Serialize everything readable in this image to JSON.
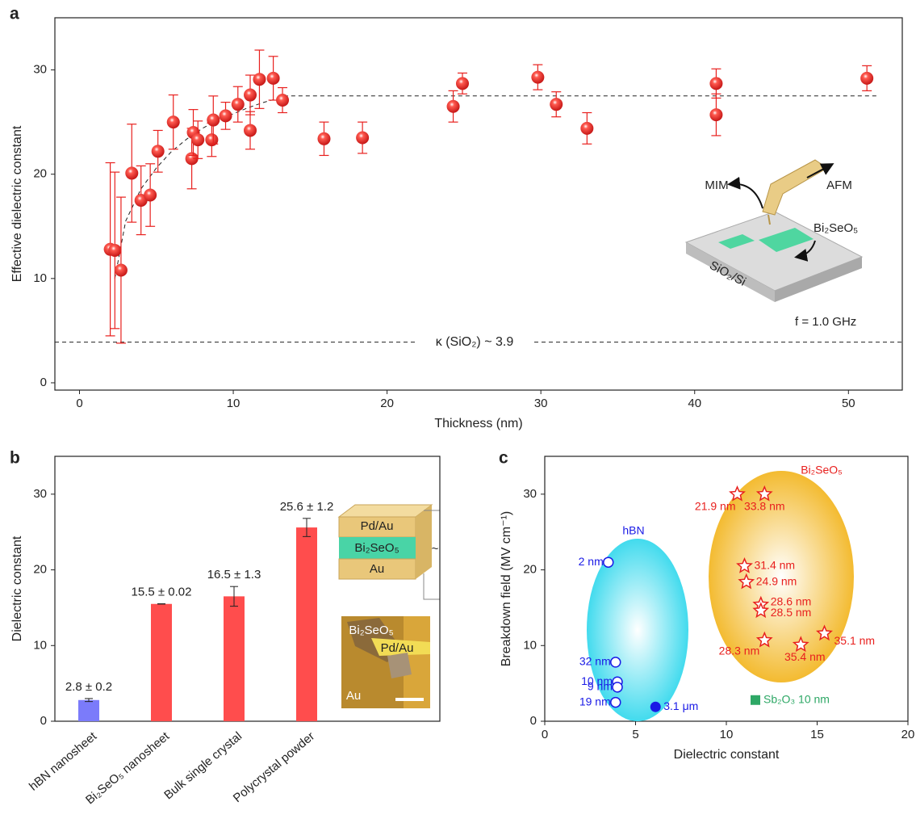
{
  "chart_data": [
    {
      "type": "scatter",
      "panel_label": "a",
      "x_label": "Thickness (nm)",
      "y_label": "Effective dielectric constant",
      "xlim": [
        -1.6,
        53.5
      ],
      "ylim": [
        -0.7,
        35
      ],
      "xticks": [
        0,
        10,
        20,
        30,
        40,
        50
      ],
      "yticks": [
        0,
        10,
        20,
        30
      ],
      "x": [
        2.0,
        2.3,
        2.7,
        3.4,
        4.0,
        4.6,
        5.1,
        6.1,
        7.3,
        7.4,
        7.7,
        8.6,
        8.7,
        9.5,
        10.3,
        11.1,
        11.1,
        11.7,
        12.6,
        13.2,
        15.9,
        18.4,
        24.3,
        24.9,
        29.8,
        31.0,
        33.0,
        41.4,
        41.4,
        51.2
      ],
      "series": [
        {
          "color": "#e8201e",
          "marker": "sphere",
          "values": [
            12.8,
            12.7,
            10.8,
            20.1,
            17.5,
            18.0,
            22.2,
            25.0,
            21.5,
            24.0,
            23.3,
            23.3,
            25.2,
            25.6,
            26.7,
            24.2,
            27.6,
            29.1,
            29.2,
            27.1,
            23.4,
            23.5,
            26.5,
            28.7,
            29.3,
            26.7,
            24.4,
            28.7,
            25.7,
            29.2
          ],
          "errors": [
            8.3,
            7.5,
            7.0,
            4.7,
            3.3,
            3.0,
            2.0,
            2.6,
            2.9,
            2.2,
            1.8,
            1.6,
            2.3,
            1.3,
            1.7,
            1.8,
            1.9,
            2.8,
            2.1,
            1.2,
            1.6,
            1.5,
            1.5,
            1.0,
            1.2,
            1.2,
            1.5,
            1.4,
            2.0,
            1.2
          ]
        }
      ],
      "fit": {
        "x": [
          2.3,
          3,
          4,
          5,
          6,
          7,
          8,
          9,
          10,
          11,
          12,
          13.5,
          52
        ],
        "y": [
          10,
          15.5,
          18.6,
          20.6,
          22.2,
          23.4,
          24.4,
          25.2,
          25.8,
          26.4,
          26.9,
          27.5,
          27.5
        ]
      },
      "reference_line": {
        "value": 3.9,
        "label": "κ (SiO₂) ~ 3.9"
      },
      "inset_labels": [
        "MIM",
        "AFM",
        "Bi₂SeO₅",
        "SiO₂/Si",
        "f = 1.0 GHz"
      ]
    },
    {
      "type": "bar",
      "panel_label": "b",
      "y_label": "Dielectric constant",
      "ylim": [
        0,
        35
      ],
      "yticks": [
        0,
        10,
        20,
        30
      ],
      "categories": [
        "hBN nanosheet",
        "Bi₂SeO₅ nanosheet",
        "Bulk single crystal",
        "Polycrystal powder"
      ],
      "values": [
        2.8,
        15.5,
        16.5,
        25.6
      ],
      "errors": [
        0.2,
        0.02,
        1.3,
        1.2
      ],
      "value_labels": [
        "2.8 ± 0.2",
        "15.5 ± 0.02",
        "16.5 ± 1.3",
        "25.6 ± 1.2"
      ],
      "colors": [
        "#7b7bfa",
        "#ff4d4d",
        "#ff4d4d",
        "#ff4d4d"
      ],
      "insets": {
        "device": [
          "Pd/Au",
          "Bi₂SeO₅",
          "Au",
          "~"
        ],
        "image": [
          "Bi₂SeO₅",
          "Pd/Au",
          "Au"
        ]
      }
    },
    {
      "type": "scatter",
      "panel_label": "c",
      "x_label": "Dielectric constant",
      "y_label": "Breakdown field (MV cm⁻¹)",
      "xlim": [
        0,
        20
      ],
      "ylim": [
        0,
        35
      ],
      "xticks": [
        0,
        5,
        10,
        15,
        20
      ],
      "yticks": [
        0,
        10,
        20,
        30
      ],
      "series": [
        {
          "name": "hBN",
          "color": "#1a1ae6",
          "marker": "open-circle",
          "x": [
            3.5,
            3.9,
            4.0,
            4.0,
            3.9
          ],
          "values": [
            21,
            7.8,
            5.2,
            4.5,
            2.5
          ],
          "labels": [
            "2 nm",
            "32 nm",
            "10 nm",
            "9 nm",
            "19 nm"
          ]
        },
        {
          "color": "#1a1ae6",
          "marker": "filled-circle",
          "x": [
            6.1
          ],
          "values": [
            1.9
          ],
          "labels": [
            "3.1 μm"
          ]
        },
        {
          "name": "Bi₂SeO₅",
          "color": "#e8201e",
          "marker": "star",
          "x": [
            10.6,
            12.1,
            11.0,
            11.1,
            11.9,
            11.9,
            12.1,
            14.1,
            15.4
          ],
          "values": [
            30,
            30,
            20.5,
            18.4,
            15.4,
            14.6,
            10.7,
            10.1,
            11.6
          ],
          "labels": [
            "21.9 nm",
            "33.8 nm",
            "31.4 nm",
            "24.9 nm",
            "28.6 nm",
            "28.5 nm",
            "28.3 nm",
            "35.4 nm",
            "35.1 nm"
          ]
        },
        {
          "color": "#2ea866",
          "marker": "square",
          "x": [
            11.6
          ],
          "values": [
            2.8
          ],
          "labels": [
            "Sb₂O₃ 10 nm"
          ]
        }
      ]
    }
  ]
}
